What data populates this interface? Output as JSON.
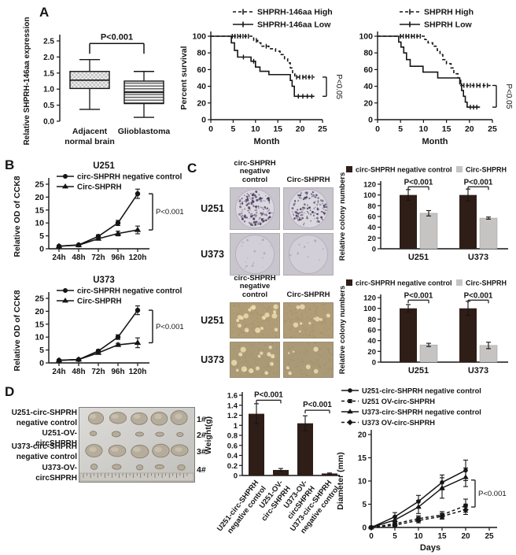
{
  "figure": {
    "panel_labels": {
      "a": "A",
      "b": "B",
      "c": "C",
      "d": "D"
    },
    "colors": {
      "line": "#151515",
      "dark_bar": "#2e1e17",
      "gray_bar": "#c6c4c3"
    }
  },
  "chart_data": [
    {
      "id": "boxplot",
      "type": "box",
      "ylabel": "Relative SHPRH-146aa expression",
      "ylim": [
        0,
        2.5
      ],
      "yticks": [
        "0.0",
        "0.5",
        "1.0",
        "1.5",
        "2.0",
        "2.5"
      ],
      "categories": [
        [
          "Adjacent",
          "normal brain"
        ],
        [
          "Glioblastoma"
        ]
      ],
      "pvalue": "P<0.001",
      "boxes": [
        {
          "low": 0.37,
          "q1": 1.02,
          "median": 1.28,
          "q3": 1.55,
          "high": 1.92,
          "pattern": "checker"
        },
        {
          "low": 0.12,
          "q1": 0.55,
          "median": 0.9,
          "q3": 1.25,
          "high": 1.55,
          "pattern": "hlines"
        }
      ]
    },
    {
      "id": "km_146aa",
      "type": "km",
      "xlabel": "Month",
      "ylabel": "Percent survival",
      "xlim": [
        0,
        25
      ],
      "ylim": [
        0,
        100
      ],
      "xticks": [
        0,
        5,
        10,
        15,
        20,
        25
      ],
      "yticks": [
        0,
        20,
        40,
        60,
        80,
        100
      ],
      "pvalue": "P<0.05",
      "series": [
        {
          "name": "SHPRH-146aa High",
          "style": "dashed",
          "x": [
            0,
            9.6,
            10.5,
            11.2,
            13,
            14.5,
            15.5,
            16.5,
            17.2,
            17.8,
            18.3,
            18.8,
            23.2
          ],
          "y": [
            100,
            95,
            92,
            88,
            85,
            82,
            78,
            73,
            68,
            62,
            55,
            51,
            51
          ],
          "censors": [
            4.8,
            5.4,
            6.0,
            6.6,
            7.2,
            7.8,
            8.4,
            10.2,
            12.4,
            19.2,
            19.9,
            20.6,
            21.3,
            22.0,
            22.7
          ]
        },
        {
          "name": "SHPRH-146aa Low",
          "style": "solid",
          "x": [
            0,
            4.6,
            5.3,
            6.0,
            9.0,
            10.0,
            11.0,
            13.0,
            17.8,
            18.2,
            18.7,
            23.2
          ],
          "y": [
            100,
            92,
            83,
            75,
            70,
            63,
            58,
            54,
            47,
            40,
            28,
            28
          ],
          "censors": [
            7.3,
            9.6,
            19.6,
            20.6,
            21.6,
            22.6
          ]
        }
      ]
    },
    {
      "id": "km_shprh",
      "type": "km",
      "xlabel": "Month",
      "ylabel": "",
      "xlim": [
        0,
        25
      ],
      "ylim": [
        0,
        100
      ],
      "xticks": [
        0,
        5,
        10,
        15,
        20,
        25
      ],
      "yticks": [
        0,
        20,
        40,
        60,
        80,
        100
      ],
      "pvalue": "P<0.05",
      "series": [
        {
          "name": "SHPRH High",
          "style": "dashed",
          "x": [
            0,
            10.3,
            11,
            12,
            13,
            13.6,
            14.2,
            15,
            16,
            16.6,
            17.5,
            18.1,
            24.6
          ],
          "y": [
            100,
            96,
            92,
            88,
            83,
            78,
            72,
            67,
            62,
            55,
            50,
            41,
            41
          ],
          "censors": [
            5,
            5.6,
            6.2,
            6.8,
            7.4,
            8,
            8.6,
            9.3,
            18.8,
            19.5,
            20.2,
            20.9,
            21.6,
            22.3,
            23.1,
            23.9
          ]
        },
        {
          "name": "SHPRH Low",
          "style": "solid",
          "x": [
            0,
            4.6,
            5.1,
            5.7,
            6.3,
            7.1,
            9.9,
            13.1,
            17.9,
            18.3,
            18.7,
            19.1,
            19.5,
            22.3
          ],
          "y": [
            100,
            93,
            87,
            80,
            72,
            64,
            57,
            50,
            43,
            35,
            28,
            21,
            15,
            15
          ],
          "censors": [
            20.2,
            20.9,
            21.6
          ]
        }
      ]
    },
    {
      "id": "cck8_u251",
      "type": "growth",
      "title": "U251",
      "ylabel": "Relative OD of CCK8",
      "categories": [
        "24h",
        "48h",
        "72h",
        "96h",
        "120h"
      ],
      "ylim": [
        0,
        25
      ],
      "yticks": [
        0,
        5,
        10,
        15,
        20,
        25
      ],
      "pvalue": "P<0.001",
      "series": [
        {
          "name": "circ-SHPRH negative control",
          "marker": "circle",
          "values": [
            1,
            1.5,
            4.8,
            10,
            21.3
          ],
          "errors": [
            0.3,
            0.3,
            0.6,
            1.0,
            1.8
          ]
        },
        {
          "name": "Circ-SHPRH",
          "marker": "triangle",
          "values": [
            1,
            1.4,
            3.9,
            5.9,
            7.3
          ],
          "errors": [
            0.3,
            0.3,
            0.5,
            0.9,
            1.5
          ]
        }
      ]
    },
    {
      "id": "cck8_u373",
      "type": "growth",
      "title": "U373",
      "ylabel": "Relative OD of CCK8",
      "categories": [
        "24h",
        "48h",
        "72h",
        "96h",
        "120h"
      ],
      "ylim": [
        0,
        25
      ],
      "yticks": [
        0,
        5,
        10,
        15,
        20,
        25
      ],
      "pvalue": "P<0.001",
      "series": [
        {
          "name": "circ-SHPRH negative control",
          "marker": "circle",
          "values": [
            1,
            1.3,
            4.6,
            10,
            20.4
          ],
          "errors": [
            0.3,
            0.3,
            0.5,
            0.9,
            1.7
          ]
        },
        {
          "name": "Circ-SHPRH",
          "marker": "triangle",
          "values": [
            1,
            1.3,
            3.9,
            7.0,
            7.8
          ],
          "errors": [
            0.3,
            0.3,
            0.5,
            0.6,
            1.9
          ]
        }
      ]
    },
    {
      "id": "colony_top",
      "type": "groupbar",
      "ylabel": "Relative colony numbers",
      "ylim": [
        0,
        120
      ],
      "yticks": [
        0,
        20,
        40,
        60,
        80,
        100,
        120
      ],
      "categories": [
        "U251",
        "U373"
      ],
      "pvalues": [
        "P<0.001",
        "P<0.001"
      ],
      "series": [
        {
          "name": "circ-SHPRH negative control",
          "color": "dark",
          "values": [
            100,
            100
          ],
          "errors": [
            10,
            11
          ]
        },
        {
          "name": "Circ-SHPRH",
          "color": "gray",
          "values": [
            66,
            57
          ],
          "errors": [
            5,
            2
          ]
        }
      ]
    },
    {
      "id": "colony_bottom",
      "type": "groupbar",
      "ylabel": "Relative colony numbers",
      "ylim": [
        0,
        120
      ],
      "yticks": [
        0,
        20,
        40,
        60,
        80,
        100,
        120
      ],
      "categories": [
        "U251",
        "U373"
      ],
      "pvalues": [
        "P<0.001",
        "P<0.001"
      ],
      "series": [
        {
          "name": "circ-SHPRH negative control",
          "color": "dark",
          "values": [
            100,
            100
          ],
          "errors": [
            7,
            13
          ]
        },
        {
          "name": "Circ-SHPRH",
          "color": "gray",
          "values": [
            32,
            31
          ],
          "errors": [
            3,
            6
          ]
        }
      ]
    },
    {
      "id": "weight",
      "type": "bar",
      "ylabel": "Weight(g)",
      "ylim": [
        0,
        1.6
      ],
      "yticks": [
        "0",
        "0.2",
        "0.4",
        "0.6",
        "0.8",
        "1",
        "1.2",
        "1.4",
        "1.6"
      ],
      "bars": [
        {
          "label": [
            "U251-circ-SHPRH",
            "negative control"
          ],
          "value": 1.23,
          "error": 0.2
        },
        {
          "label": [
            "U251-OV-",
            "circ-SHPRH"
          ],
          "value": 0.11,
          "error": 0.03
        },
        {
          "label": [
            "U373-OV-",
            "circSHPRH"
          ],
          "value": 1.04,
          "error": 0.15
        },
        {
          "label": [
            "U373-circ-SHPRH",
            "negative control"
          ],
          "value": 0.04,
          "error": 0.01
        }
      ],
      "pvalues": [
        {
          "text": "P<0.001",
          "pair": [
            0,
            1
          ],
          "y": 1.5
        },
        {
          "text": "P<0.001",
          "pair": [
            2,
            3
          ],
          "y": 1.3
        }
      ]
    },
    {
      "id": "diameter",
      "type": "multiline",
      "xlabel": "Days",
      "ylabel": "Diameter (mm)",
      "xlim": [
        0,
        25
      ],
      "ylim": [
        0,
        20
      ],
      "xticks": [
        0,
        5,
        10,
        15,
        20,
        25
      ],
      "yticks": [
        0,
        5,
        10,
        15,
        20
      ],
      "pvalue": "P<0.001",
      "x": [
        0,
        5,
        10,
        15,
        20
      ],
      "series": [
        {
          "name": "U251-circ-SHPRH negative control",
          "marker": "circle",
          "style": "solid",
          "values": [
            0,
            2.3,
            5.6,
            9.7,
            12.3
          ],
          "errors": [
            0.2,
            0.9,
            1.3,
            1.6,
            2.2
          ]
        },
        {
          "name": "U251 OV-circ-SHPRH",
          "marker": "square",
          "style": "dashed",
          "values": [
            0,
            0.8,
            1.9,
            2.7,
            4.7
          ],
          "errors": [
            0.2,
            0.4,
            0.6,
            0.7,
            1.4
          ]
        },
        {
          "name": "U373-circ-SHPRH negative control",
          "marker": "triangle",
          "style": "solid",
          "values": [
            0,
            1.6,
            4.4,
            8.5,
            10.8
          ],
          "errors": [
            0.2,
            0.7,
            1.4,
            2.2,
            2.0
          ]
        },
        {
          "name": "U373 OV-circ-SHPRH",
          "marker": "diamond",
          "style": "dashed",
          "values": [
            0,
            0.5,
            1.5,
            2.4,
            3.8
          ],
          "errors": [
            0.2,
            0.3,
            0.5,
            0.6,
            1.0
          ]
        }
      ]
    }
  ],
  "panel_c": {
    "top_images": {
      "col_headers": [
        "circ-SHPRH negative control",
        "Circ-SHPRH"
      ],
      "row_labels": [
        "U251",
        "U373"
      ],
      "stain": "crystal-violet"
    },
    "bottom_images": {
      "col_headers": [
        "circ-SHPRH negative control",
        "Circ-SHPRH"
      ],
      "row_labels": [
        "U251",
        "U373"
      ],
      "stain": "soft-agar"
    }
  },
  "panel_d": {
    "rows": [
      {
        "label": "U251-circ-SHPRH negative control",
        "tag": "1#",
        "tumor_size": "large"
      },
      {
        "label": "U251-OV-circSHPRH",
        "tag": "2#",
        "tumor_size": "small"
      },
      {
        "label": "U373-circ-SHPRH negative control",
        "tag": "3#",
        "tumor_size": "large"
      },
      {
        "label": "U373-OV-circSHPRH",
        "tag": "4#",
        "tumor_size": "small"
      }
    ]
  }
}
